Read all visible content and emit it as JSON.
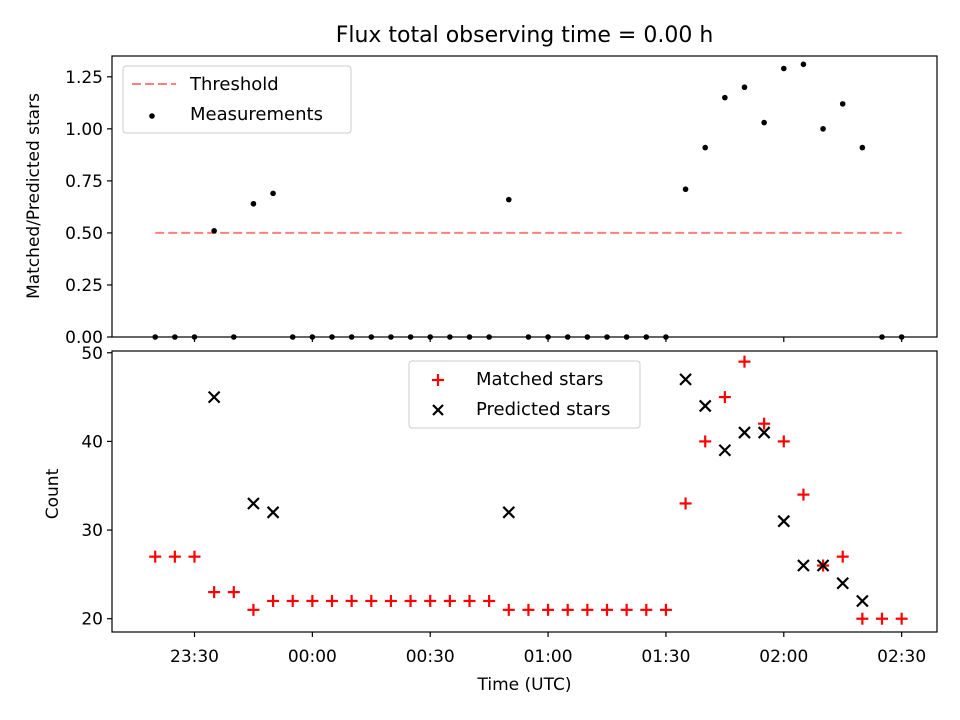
{
  "chart_data": [
    {
      "type": "scatter",
      "title": "Flux total observing time = 0.00 h",
      "xlabel": "",
      "ylabel": "Matched/Predicted stars",
      "ylim": [
        0,
        1.35
      ],
      "yticks": [
        0,
        0.25,
        0.5,
        0.75,
        1.0,
        1.25
      ],
      "ytick_labels": [
        "0.00",
        "0.25",
        "0.50",
        "0.75",
        "1.00",
        "1.25"
      ],
      "xlim": [
        "23:09",
        "02:39"
      ],
      "legend_position": "top-left",
      "series": [
        {
          "name": "Threshold",
          "kind": "dashed-line",
          "color": "#ff7f7f",
          "x": [
            "23:20",
            "02:30"
          ],
          "y": [
            0.5,
            0.5
          ]
        },
        {
          "name": "Measurements",
          "kind": "dots",
          "color": "#000000",
          "x": [
            "23:20",
            "23:25",
            "23:30",
            "23:35",
            "23:40",
            "23:45",
            "23:50",
            "23:55",
            "00:00",
            "00:05",
            "00:10",
            "00:15",
            "00:20",
            "00:25",
            "00:30",
            "00:35",
            "00:40",
            "00:45",
            "00:50",
            "00:55",
            "01:00",
            "01:05",
            "01:10",
            "01:15",
            "01:20",
            "01:25",
            "01:30",
            "01:35",
            "01:40",
            "01:45",
            "01:50",
            "01:55",
            "02:00",
            "02:05",
            "02:10",
            "02:15",
            "02:20",
            "02:25",
            "02:30"
          ],
          "y": [
            0,
            0,
            0,
            0.51,
            0,
            0.64,
            0.69,
            0,
            0,
            0,
            0,
            0,
            0,
            0,
            0,
            0,
            0,
            0,
            0.66,
            0,
            0,
            0,
            0,
            0,
            0,
            0,
            0,
            0.71,
            0.91,
            1.15,
            1.2,
            1.03,
            1.29,
            1.31,
            1.0,
            1.12,
            0.91,
            0,
            0
          ]
        }
      ]
    },
    {
      "type": "scatter",
      "title": "",
      "xlabel": "Time (UTC)",
      "ylabel": "Count",
      "ylim": [
        18.5,
        50.2
      ],
      "yticks": [
        20,
        30,
        40,
        50
      ],
      "ytick_labels": [
        "20",
        "30",
        "40",
        "50"
      ],
      "xlim": [
        "23:09",
        "02:39"
      ],
      "xticks": [
        "23:30",
        "00:00",
        "00:30",
        "01:00",
        "01:30",
        "02:00",
        "02:30"
      ],
      "legend_position": "top-center",
      "series": [
        {
          "name": "Matched stars",
          "marker": "plus",
          "color": "#ff0000",
          "x": [
            "23:20",
            "23:25",
            "23:30",
            "23:35",
            "23:40",
            "23:45",
            "23:50",
            "23:55",
            "00:00",
            "00:05",
            "00:10",
            "00:15",
            "00:20",
            "00:25",
            "00:30",
            "00:35",
            "00:40",
            "00:45",
            "00:50",
            "00:55",
            "01:00",
            "01:05",
            "01:10",
            "01:15",
            "01:20",
            "01:25",
            "01:30",
            "01:35",
            "01:40",
            "01:45",
            "01:50",
            "01:55",
            "02:00",
            "02:05",
            "02:10",
            "02:15",
            "02:20",
            "02:25",
            "02:30"
          ],
          "y": [
            27,
            27,
            27,
            23,
            23,
            21,
            22,
            22,
            22,
            22,
            22,
            22,
            22,
            22,
            22,
            22,
            22,
            22,
            21,
            21,
            21,
            21,
            21,
            21,
            21,
            21,
            21,
            33,
            40,
            45,
            49,
            42,
            40,
            34,
            26,
            27,
            20,
            20,
            20
          ]
        },
        {
          "name": "Predicted stars",
          "marker": "x",
          "color": "#000000",
          "x": [
            "23:35",
            "23:45",
            "23:50",
            "00:50",
            "01:35",
            "01:40",
            "01:45",
            "01:50",
            "01:55",
            "02:00",
            "02:05",
            "02:10",
            "02:15",
            "02:20"
          ],
          "y": [
            45,
            33,
            32,
            32,
            47,
            44,
            39,
            41,
            41,
            31,
            26,
            26,
            24,
            22
          ]
        }
      ]
    }
  ]
}
